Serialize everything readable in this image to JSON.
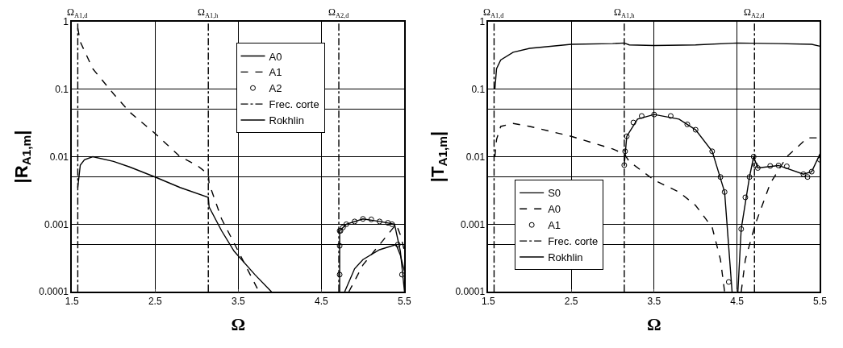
{
  "chart_data": [
    {
      "type": "line",
      "xlabel": "Ω",
      "ylabel": "|R$_{A1,m}$|",
      "xlim": [
        1.5,
        5.5
      ],
      "xticks": [
        1.5,
        2.5,
        3.5,
        4.5,
        5.5
      ],
      "ylim": [
        0.0001,
        1
      ],
      "log": "y",
      "yticks": [
        0.0001,
        {
          "value": 0.0005,
          "label": null
        },
        0.001,
        {
          "value": 0.005,
          "label": null
        },
        0.01,
        {
          "value": 0.05,
          "label": null
        },
        0.1,
        1
      ],
      "grid": true,
      "legend": "top right",
      "annotations": [
        {
          "text": "Ω$_{A1,d}$",
          "x": 1.57,
          "y": 1
        },
        {
          "text": "Ω$_{A1,h}$",
          "x": 3.14,
          "y": 1
        },
        {
          "text": "Ω$_{A2,d}$",
          "x": 4.71,
          "y": 1
        }
      ],
      "series": [
        {
          "name": "A0",
          "line_style": "solid",
          "color": "#000000",
          "x": [
            1.57,
            1.6,
            1.65,
            1.75,
            2.0,
            2.2,
            2.5,
            2.8,
            3.14,
            3.15,
            3.3,
            3.45,
            3.7,
            3.9,
            null,
            4.78,
            4.9,
            5.0,
            5.2,
            5.4,
            5.45,
            5.5
          ],
          "values": [
            0.0035,
            0.0075,
            0.009,
            0.01,
            0.0085,
            0.007,
            0.005,
            0.0035,
            0.0025,
            0.0018,
            0.0008,
            0.0004,
            0.00018,
            0.0001,
            null,
            0.0001,
            0.00022,
            0.0003,
            0.00042,
            0.0005,
            0.00035,
            0.0002
          ]
        },
        {
          "name": "A1",
          "line_style": "dashed",
          "color": "#000000",
          "x": [
            1.57,
            1.6,
            1.75,
            2.0,
            2.2,
            2.5,
            2.8,
            3.0,
            3.14,
            3.15,
            3.3,
            3.5,
            3.75,
            null,
            4.83,
            5.0,
            5.2,
            5.4,
            5.45,
            5.5
          ],
          "values": [
            0.8,
            0.5,
            0.2,
            0.085,
            0.045,
            0.022,
            0.01,
            0.0075,
            0.0055,
            0.004,
            0.0012,
            0.0004,
            0.0001,
            null,
            0.0001,
            0.00025,
            0.0005,
            0.001,
            0.0007,
            0.0004
          ]
        },
        {
          "name": "A2",
          "type": "scatter",
          "marker": "circle",
          "color": "#000000",
          "x": [
            4.72,
            4.72,
            4.72,
            4.73,
            4.76,
            4.8,
            4.9,
            5.0,
            5.1,
            5.2,
            5.3,
            5.35,
            5.42,
            5.47
          ],
          "values": [
            0.00018,
            0.00048,
            0.0008,
            0.0008,
            0.0009,
            0.001,
            0.0011,
            0.0012,
            0.00118,
            0.0011,
            0.00105,
            0.001,
            0.0005,
            0.00018
          ]
        },
        {
          "name": "Frec. corte",
          "type": "line",
          "line_style": "dashdot",
          "color": "#000000",
          "x": [
            1.57,
            1.57,
            null,
            3.14,
            3.14,
            null,
            4.71,
            4.71
          ],
          "values": [
            0.0001,
            1,
            null,
            0.0001,
            1,
            null,
            0.0001,
            1
          ]
        },
        {
          "name": "Rokhlin",
          "line_style": "solid",
          "color": "#000000",
          "x": [
            4.72,
            4.72,
            4.8,
            5.0,
            5.2,
            5.38,
            5.45,
            5.5
          ],
          "values": [
            0.0001,
            0.0008,
            0.001,
            0.0012,
            0.0011,
            0.001,
            0.0004,
            0.0001
          ]
        }
      ]
    },
    {
      "type": "line",
      "xlabel": "Ω",
      "ylabel": "|T$_{A1,m}$|",
      "xlim": [
        1.5,
        5.5
      ],
      "xticks": [
        1.5,
        2.5,
        3.5,
        4.5,
        5.5
      ],
      "ylim": [
        0.0001,
        1
      ],
      "log": "y",
      "yticks": [
        0.0001,
        {
          "value": 0.0005,
          "label": null
        },
        0.001,
        {
          "value": 0.005,
          "label": null
        },
        0.01,
        {
          "value": 0.05,
          "label": null
        },
        0.1,
        1
      ],
      "grid": true,
      "legend": "bottom left",
      "annotations": [
        {
          "text": "Ω$_{A1,d}$",
          "x": 1.57,
          "y": 1
        },
        {
          "text": "Ω$_{A1,h}$",
          "x": 3.14,
          "y": 1
        },
        {
          "text": "Ω$_{A2,d}$",
          "x": 4.71,
          "y": 1
        }
      ],
      "series": [
        {
          "name": "S0",
          "line_style": "solid",
          "color": "#000000",
          "x": [
            1.58,
            1.6,
            1.65,
            1.8,
            2.0,
            2.5,
            3.0,
            3.14,
            3.2,
            3.5,
            4.0,
            4.5,
            5.0,
            5.4,
            5.5
          ],
          "values": [
            0.1,
            0.2,
            0.27,
            0.35,
            0.4,
            0.46,
            0.47,
            0.48,
            0.45,
            0.44,
            0.45,
            0.48,
            0.47,
            0.46,
            0.43
          ]
        },
        {
          "name": "A0",
          "line_style": "dashed",
          "color": "#000000",
          "x": [
            1.58,
            1.6,
            1.65,
            1.8,
            2.0,
            2.5,
            3.0,
            3.14,
            3.2,
            3.5,
            3.8,
            4.0,
            4.2,
            4.3,
            4.35,
            null,
            4.55,
            4.6,
            4.72,
            4.9,
            5.1,
            5.35,
            5.5
          ],
          "values": [
            0.01,
            0.018,
            0.028,
            0.031,
            0.028,
            0.02,
            0.013,
            0.011,
            0.0085,
            0.0045,
            0.003,
            0.0019,
            0.0009,
            0.0003,
            0.0001,
            null,
            0.0001,
            0.0003,
            0.001,
            0.004,
            0.01,
            0.019,
            0.019
          ]
        },
        {
          "name": "A1",
          "type": "scatter",
          "marker": "circle",
          "color": "#000000",
          "x": [
            3.14,
            3.15,
            3.17,
            3.25,
            3.35,
            3.5,
            3.7,
            3.9,
            4.0,
            4.2,
            4.3,
            4.35,
            4.4,
            4.55,
            4.6,
            4.65,
            4.7,
            4.72,
            4.75,
            4.9,
            5.0,
            5.1,
            5.3,
            5.35,
            5.4,
            5.5
          ],
          "values": [
            0.0075,
            0.012,
            0.02,
            0.032,
            0.04,
            0.042,
            0.04,
            0.03,
            0.025,
            0.012,
            0.005,
            0.003,
            0.00014,
            0.00085,
            0.0025,
            0.005,
            0.01,
            0.0075,
            0.0068,
            0.0073,
            0.0074,
            0.0072,
            0.0055,
            0.005,
            0.006,
            0.009
          ]
        },
        {
          "name": "Frec. corte",
          "type": "line",
          "line_style": "dashdot",
          "color": "#000000",
          "x": [
            1.57,
            1.57,
            null,
            3.14,
            3.14,
            null,
            4.71,
            4.71
          ],
          "values": [
            0.0001,
            1,
            null,
            0.0001,
            1,
            null,
            0.0001,
            1
          ]
        },
        {
          "name": "Rokhlin",
          "line_style": "solid",
          "color": "#000000",
          "x": [
            3.14,
            3.17,
            3.3,
            3.5,
            3.8,
            4.0,
            4.2,
            4.35,
            4.44,
            null,
            4.51,
            4.55,
            4.65,
            4.7,
            4.75,
            5.0,
            5.3,
            5.4,
            5.5
          ],
          "values": [
            0.0075,
            0.02,
            0.036,
            0.042,
            0.036,
            0.025,
            0.012,
            0.003,
            0.0001,
            null,
            0.0001,
            0.00085,
            0.005,
            0.01,
            0.0068,
            0.0074,
            0.0055,
            0.006,
            0.011
          ]
        }
      ]
    }
  ]
}
